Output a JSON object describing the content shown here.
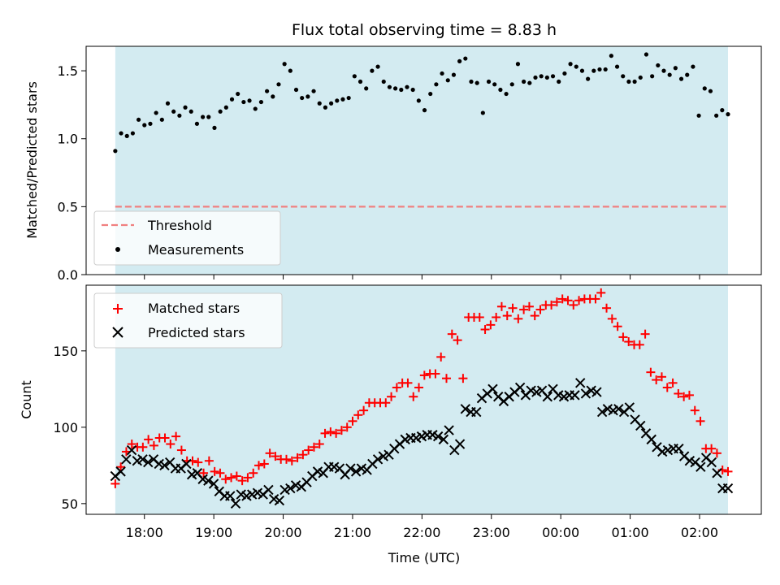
{
  "chart_data": {
    "type": "scatter",
    "title": "Flux total observing time = 8.83 h",
    "xlabel": "Time (UTC)",
    "x_tick_labels": [
      "18:00",
      "19:00",
      "20:00",
      "21:00",
      "22:00",
      "23:00",
      "00:00",
      "01:00",
      "02:00"
    ],
    "x_tick_hours": [
      0.42,
      1.42,
      2.42,
      3.42,
      4.42,
      5.42,
      6.42,
      7.42,
      8.42
    ],
    "xlim_hours": [
      -0.42,
      9.31
    ],
    "observing_window_hours": [
      0,
      8.83
    ],
    "span_color": "#d3ebf1",
    "panels": [
      {
        "id": "ratio",
        "ylabel": "Matched/Predicted stars",
        "ylim": [
          0,
          1.68
        ],
        "yticks": [
          0.0,
          0.5,
          1.0,
          1.5
        ],
        "ytick_labels": [
          "0.0",
          "0.5",
          "1.0",
          "1.5"
        ],
        "legend_position": "lower-left",
        "threshold": {
          "name": "Threshold",
          "value": 0.5,
          "color": "#f08080"
        },
        "series": [
          {
            "name": "Measurements",
            "marker": "dot",
            "color": "#000000",
            "y": [
              0.91,
              1.04,
              1.02,
              1.04,
              1.14,
              1.1,
              1.11,
              1.19,
              1.14,
              1.26,
              1.2,
              1.17,
              1.23,
              1.2,
              1.11,
              1.16,
              1.16,
              1.08,
              1.2,
              1.23,
              1.29,
              1.33,
              1.27,
              1.28,
              1.22,
              1.27,
              1.35,
              1.31,
              1.4,
              1.55,
              1.5,
              1.36,
              1.3,
              1.31,
              1.35,
              1.26,
              1.23,
              1.26,
              1.28,
              1.29,
              1.3,
              1.46,
              1.42,
              1.37,
              1.5,
              1.53,
              1.42,
              1.38,
              1.37,
              1.36,
              1.38,
              1.36,
              1.28,
              1.21,
              1.33,
              1.4,
              1.48,
              1.43,
              1.47,
              1.57,
              1.59,
              1.42,
              1.41,
              1.19,
              1.42,
              1.4,
              1.36,
              1.33,
              1.4,
              1.55,
              1.42,
              1.41,
              1.45,
              1.46,
              1.45,
              1.46,
              1.42,
              1.48,
              1.55,
              1.53,
              1.5,
              1.44,
              1.5,
              1.51,
              1.51,
              1.61,
              1.53,
              1.46,
              1.42,
              1.42,
              1.45,
              1.62,
              1.46,
              1.54,
              1.5,
              1.47,
              1.52,
              1.44,
              1.47,
              1.53,
              1.17,
              1.37,
              1.35,
              1.17,
              1.21,
              1.18
            ]
          }
        ]
      },
      {
        "id": "count",
        "ylabel": "Count",
        "ylim": [
          43,
          193
        ],
        "yticks": [
          50,
          100,
          150
        ],
        "ytick_labels": [
          "50",
          "100",
          "150"
        ],
        "legend_position": "upper-left",
        "series": [
          {
            "name": "Matched stars",
            "marker": "plus",
            "color": "#ff0000",
            "y": [
              63,
              74,
              84,
              89,
              87,
              87,
              92,
              88,
              93,
              93,
              89,
              94,
              85,
              78,
              78,
              77,
              70,
              78,
              71,
              70,
              66,
              67,
              68,
              65,
              67,
              70,
              75,
              76,
              83,
              81,
              79,
              79,
              78,
              80,
              82,
              85,
              87,
              89,
              96,
              97,
              96,
              98,
              100,
              104,
              108,
              111,
              116,
              116,
              116,
              116,
              120,
              126,
              129,
              129,
              120,
              126,
              134,
              135,
              135,
              146,
              132,
              161,
              157,
              132,
              172,
              172,
              172,
              164,
              167,
              172,
              179,
              173,
              178,
              171,
              177,
              179,
              173,
              177,
              180,
              180,
              182,
              184,
              183,
              180,
              183,
              184,
              184,
              184,
              188,
              178,
              171,
              166,
              159,
              156,
              154,
              154,
              161,
              136,
              131,
              133,
              126,
              129,
              122,
              120,
              121,
              111,
              104,
              86,
              86,
              83,
              72,
              71
            ]
          },
          {
            "name": "Predicted stars",
            "marker": "x",
            "color": "#000000",
            "y": [
              68,
              71,
              79,
              85,
              78,
              79,
              77,
              79,
              76,
              75,
              77,
              73,
              73,
              76,
              69,
              70,
              66,
              65,
              63,
              58,
              55,
              55,
              50,
              56,
              55,
              56,
              57,
              56,
              59,
              53,
              52,
              59,
              60,
              62,
              61,
              64,
              68,
              71,
              70,
              74,
              74,
              73,
              69,
              73,
              71,
              73,
              72,
              76,
              79,
              81,
              82,
              86,
              89,
              92,
              93,
              93,
              94,
              95,
              95,
              94,
              92,
              98,
              85,
              89,
              112,
              110,
              110,
              119,
              122,
              125,
              120,
              117,
              120,
              123,
              126,
              121,
              124,
              123,
              124,
              120,
              125,
              121,
              120,
              121,
              121,
              129,
              122,
              124,
              123,
              110,
              112,
              111,
              112,
              110,
              113,
              105,
              101,
              96,
              92,
              87,
              84,
              85,
              86,
              86,
              81,
              78,
              77,
              74,
              80,
              77,
              70,
              60,
              60
            ]
          }
        ]
      }
    ]
  }
}
